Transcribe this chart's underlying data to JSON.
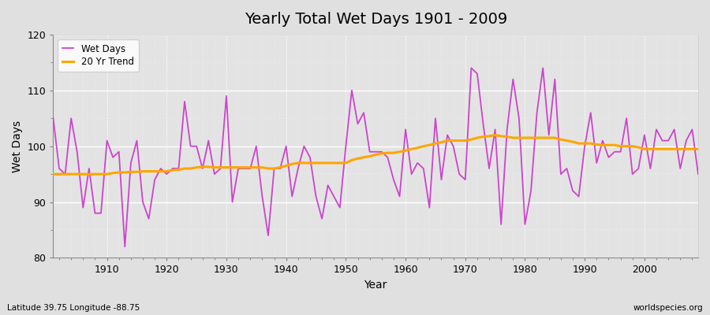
{
  "title": "Yearly Total Wet Days 1901 - 2009",
  "xlabel": "Year",
  "ylabel": "Wet Days",
  "lat_lon_label": "Latitude 39.75 Longitude -88.75",
  "source_label": "worldspecies.org",
  "ylim": [
    80,
    120
  ],
  "xlim": [
    1901,
    2009
  ],
  "yticks": [
    80,
    90,
    100,
    110,
    120
  ],
  "xticks": [
    1910,
    1920,
    1930,
    1940,
    1950,
    1960,
    1970,
    1980,
    1990,
    2000
  ],
  "wet_days_color": "#CC44CC",
  "trend_color": "#FFA500",
  "bg_color": "#E0E0E0",
  "inner_bg_color": "#D8D8D8",
  "wet_days": {
    "1901": 105,
    "1902": 96,
    "1903": 95,
    "1904": 105,
    "1905": 99,
    "1906": 89,
    "1907": 96,
    "1908": 88,
    "1909": 88,
    "1910": 101,
    "1911": 98,
    "1912": 99,
    "1913": 82,
    "1914": 97,
    "1915": 101,
    "1916": 90,
    "1917": 87,
    "1918": 94,
    "1919": 96,
    "1920": 95,
    "1921": 96,
    "1922": 96,
    "1923": 108,
    "1924": 100,
    "1925": 100,
    "1926": 96,
    "1927": 101,
    "1928": 95,
    "1929": 96,
    "1930": 109,
    "1931": 90,
    "1932": 96,
    "1933": 96,
    "1934": 96,
    "1935": 100,
    "1936": 91,
    "1937": 84,
    "1938": 96,
    "1939": 96,
    "1940": 100,
    "1941": 91,
    "1942": 96,
    "1943": 100,
    "1944": 98,
    "1945": 91,
    "1946": 87,
    "1947": 93,
    "1948": 91,
    "1949": 89,
    "1950": 100,
    "1951": 110,
    "1952": 104,
    "1953": 106,
    "1954": 99,
    "1955": 99,
    "1956": 99,
    "1957": 98,
    "1958": 94,
    "1959": 91,
    "1960": 103,
    "1961": 95,
    "1962": 97,
    "1963": 96,
    "1964": 89,
    "1965": 105,
    "1966": 94,
    "1967": 102,
    "1968": 100,
    "1969": 95,
    "1970": 94,
    "1971": 114,
    "1972": 113,
    "1973": 104,
    "1974": 96,
    "1975": 103,
    "1976": 86,
    "1977": 103,
    "1978": 112,
    "1979": 105,
    "1980": 86,
    "1981": 92,
    "1982": 106,
    "1983": 114,
    "1984": 102,
    "1985": 112,
    "1986": 95,
    "1987": 96,
    "1988": 92,
    "1989": 91,
    "1990": 100,
    "1991": 106,
    "1992": 97,
    "1993": 101,
    "1994": 98,
    "1995": 99,
    "1996": 99,
    "1997": 105,
    "1998": 95,
    "1999": 96,
    "2000": 102,
    "2001": 96,
    "2002": 103,
    "2003": 101,
    "2004": 101,
    "2005": 103,
    "2006": 96,
    "2007": 101,
    "2008": 103,
    "2009": 95
  },
  "trend_20yr": {
    "1901": 95.0,
    "1902": 95.0,
    "1903": 95.0,
    "1904": 95.0,
    "1905": 95.0,
    "1906": 95.0,
    "1907": 95.0,
    "1908": 95.0,
    "1909": 95.0,
    "1910": 95.0,
    "1911": 95.2,
    "1912": 95.3,
    "1913": 95.3,
    "1914": 95.4,
    "1915": 95.4,
    "1916": 95.5,
    "1917": 95.5,
    "1918": 95.5,
    "1919": 95.5,
    "1920": 95.5,
    "1921": 95.7,
    "1922": 95.8,
    "1923": 96.0,
    "1924": 96.0,
    "1925": 96.2,
    "1926": 96.3,
    "1927": 96.3,
    "1928": 96.2,
    "1929": 96.2,
    "1930": 96.2,
    "1931": 96.2,
    "1932": 96.2,
    "1933": 96.2,
    "1934": 96.2,
    "1935": 96.2,
    "1936": 96.2,
    "1937": 96.0,
    "1938": 96.0,
    "1939": 96.2,
    "1940": 96.5,
    "1941": 96.8,
    "1942": 97.0,
    "1943": 97.0,
    "1944": 97.0,
    "1945": 97.0,
    "1946": 97.0,
    "1947": 97.0,
    "1948": 97.0,
    "1949": 97.0,
    "1950": 97.0,
    "1951": 97.5,
    "1952": 97.8,
    "1953": 98.0,
    "1954": 98.2,
    "1955": 98.5,
    "1956": 98.7,
    "1957": 98.8,
    "1958": 98.8,
    "1959": 99.0,
    "1960": 99.2,
    "1961": 99.5,
    "1962": 99.7,
    "1963": 100.0,
    "1964": 100.2,
    "1965": 100.5,
    "1966": 100.7,
    "1967": 101.0,
    "1968": 101.0,
    "1969": 101.0,
    "1970": 101.0,
    "1971": 101.2,
    "1972": 101.5,
    "1973": 101.7,
    "1974": 101.8,
    "1975": 102.0,
    "1976": 101.8,
    "1977": 101.7,
    "1978": 101.5,
    "1979": 101.5,
    "1980": 101.5,
    "1981": 101.5,
    "1982": 101.5,
    "1983": 101.5,
    "1984": 101.5,
    "1985": 101.5,
    "1986": 101.2,
    "1987": 101.0,
    "1988": 100.8,
    "1989": 100.5,
    "1990": 100.5,
    "1991": 100.5,
    "1992": 100.3,
    "1993": 100.2,
    "1994": 100.2,
    "1995": 100.2,
    "1996": 100.0,
    "1997": 100.0,
    "1998": 100.0,
    "1999": 99.8,
    "2000": 99.5,
    "2001": 99.5,
    "2002": 99.5,
    "2003": 99.5,
    "2004": 99.5,
    "2005": 99.5,
    "2006": 99.5,
    "2007": 99.5,
    "2008": 99.5,
    "2009": 99.5
  }
}
